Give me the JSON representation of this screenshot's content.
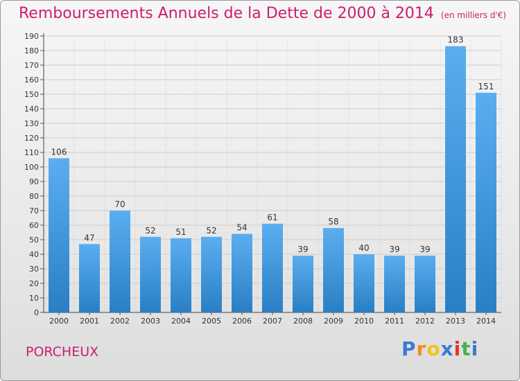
{
  "header": {
    "title": "Remboursements Annuels de la Dette de 2000 à 2014",
    "unit": "(en milliers d'€)"
  },
  "footer": {
    "commune": "PORCHEUX",
    "logo": [
      "P",
      "r",
      "o",
      "x",
      "i",
      "t",
      "i"
    ],
    "logo_colors": [
      "#3a7bd5",
      "#f28c1e",
      "#f2c318",
      "#3a7bd5",
      "#e6332a",
      "#4caf50",
      "#3a7bd5"
    ]
  },
  "colors": {
    "bar_light": "#5aaef0",
    "bar_dark": "#2a7fc4",
    "title": "#cc1d6e",
    "grid": "#cccccc"
  },
  "chart_data": {
    "type": "bar",
    "categories": [
      "2000",
      "2001",
      "2002",
      "2003",
      "2004",
      "2005",
      "2006",
      "2007",
      "2008",
      "2009",
      "2010",
      "2011",
      "2012",
      "2013",
      "2014"
    ],
    "values": [
      106,
      47,
      70,
      52,
      51,
      52,
      54,
      61,
      39,
      58,
      40,
      39,
      39,
      183,
      151
    ],
    "ylim": [
      0,
      190
    ],
    "yticks": [
      0,
      10,
      20,
      30,
      40,
      50,
      60,
      70,
      80,
      90,
      100,
      110,
      120,
      130,
      140,
      150,
      160,
      170,
      180,
      190
    ],
    "grid": true,
    "data_labels": true
  }
}
